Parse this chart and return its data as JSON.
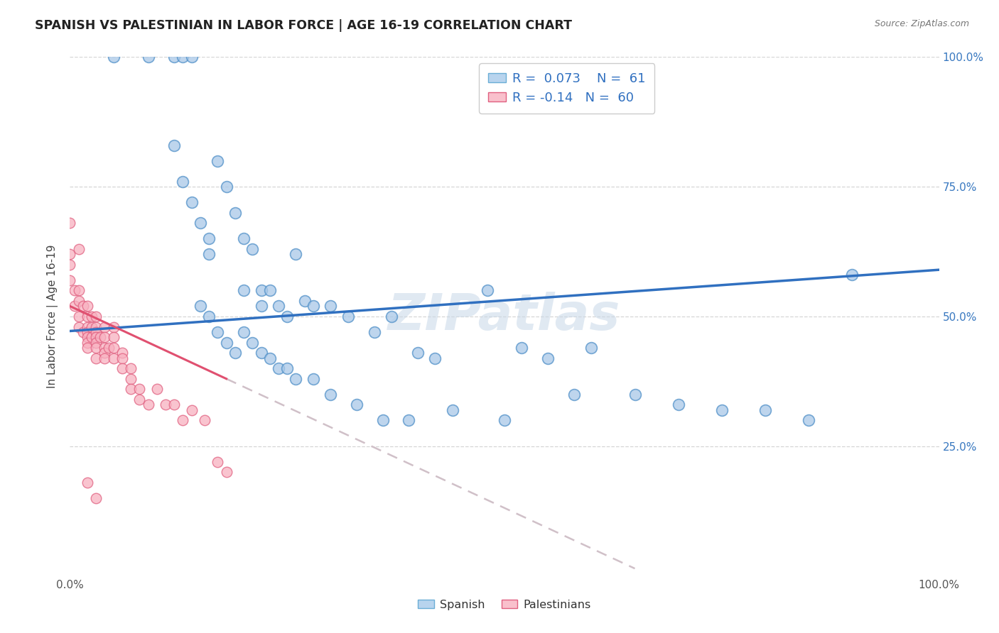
{
  "title": "SPANISH VS PALESTINIAN IN LABOR FORCE | AGE 16-19 CORRELATION CHART",
  "source": "Source: ZipAtlas.com",
  "ylabel": "In Labor Force | Age 16-19",
  "xlim": [
    0.0,
    1.0
  ],
  "ylim": [
    0.0,
    1.0
  ],
  "legend_spanish_label": "Spanish",
  "legend_palestinian_label": "Palestinians",
  "R_spanish": 0.073,
  "N_spanish": 61,
  "R_palestinian": -0.14,
  "N_palestinian": 60,
  "spanish_color": "#a8c8e8",
  "spanish_edge_color": "#5090c8",
  "palestinian_color": "#f8b0c0",
  "palestinian_edge_color": "#e06080",
  "spanish_line_color": "#3070c0",
  "palestinian_line_color": "#e05070",
  "palestinian_dash_color": "#d0c0c8",
  "watermark": "ZIPatlas",
  "spanish_x": [
    0.05,
    0.09,
    0.12,
    0.13,
    0.14,
    0.12,
    0.13,
    0.14,
    0.15,
    0.16,
    0.16,
    0.17,
    0.18,
    0.19,
    0.2,
    0.2,
    0.21,
    0.22,
    0.22,
    0.23,
    0.24,
    0.25,
    0.26,
    0.27,
    0.28,
    0.3,
    0.32,
    0.35,
    0.37,
    0.4,
    0.42,
    0.48,
    0.52,
    0.55,
    0.6,
    0.65,
    0.7,
    0.75,
    0.8,
    0.85,
    0.9,
    0.15,
    0.16,
    0.17,
    0.18,
    0.19,
    0.2,
    0.21,
    0.22,
    0.23,
    0.24,
    0.25,
    0.26,
    0.28,
    0.3,
    0.33,
    0.36,
    0.39,
    0.44,
    0.5,
    0.58
  ],
  "spanish_y": [
    1.0,
    1.0,
    1.0,
    1.0,
    1.0,
    0.83,
    0.76,
    0.72,
    0.68,
    0.65,
    0.62,
    0.8,
    0.75,
    0.7,
    0.65,
    0.55,
    0.63,
    0.55,
    0.52,
    0.55,
    0.52,
    0.5,
    0.62,
    0.53,
    0.52,
    0.52,
    0.5,
    0.47,
    0.5,
    0.43,
    0.42,
    0.55,
    0.44,
    0.42,
    0.44,
    0.35,
    0.33,
    0.32,
    0.32,
    0.3,
    0.58,
    0.52,
    0.5,
    0.47,
    0.45,
    0.43,
    0.47,
    0.45,
    0.43,
    0.42,
    0.4,
    0.4,
    0.38,
    0.38,
    0.35,
    0.33,
    0.3,
    0.3,
    0.32,
    0.3,
    0.35
  ],
  "palestinian_x": [
    0.0,
    0.0,
    0.0,
    0.005,
    0.005,
    0.01,
    0.01,
    0.01,
    0.01,
    0.015,
    0.015,
    0.02,
    0.02,
    0.02,
    0.02,
    0.02,
    0.02,
    0.02,
    0.025,
    0.025,
    0.025,
    0.03,
    0.03,
    0.03,
    0.03,
    0.03,
    0.03,
    0.03,
    0.035,
    0.04,
    0.04,
    0.04,
    0.04,
    0.04,
    0.045,
    0.05,
    0.05,
    0.05,
    0.05,
    0.06,
    0.06,
    0.06,
    0.07,
    0.07,
    0.07,
    0.08,
    0.08,
    0.09,
    0.1,
    0.11,
    0.12,
    0.13,
    0.14,
    0.155,
    0.17,
    0.18,
    0.0,
    0.01,
    0.02,
    0.03
  ],
  "palestinian_y": [
    0.62,
    0.6,
    0.57,
    0.55,
    0.52,
    0.55,
    0.53,
    0.5,
    0.48,
    0.52,
    0.47,
    0.52,
    0.5,
    0.48,
    0.47,
    0.46,
    0.45,
    0.44,
    0.5,
    0.48,
    0.46,
    0.5,
    0.48,
    0.47,
    0.46,
    0.45,
    0.44,
    0.42,
    0.46,
    0.48,
    0.46,
    0.44,
    0.43,
    0.42,
    0.44,
    0.48,
    0.46,
    0.44,
    0.42,
    0.43,
    0.42,
    0.4,
    0.4,
    0.38,
    0.36,
    0.36,
    0.34,
    0.33,
    0.36,
    0.33,
    0.33,
    0.3,
    0.32,
    0.3,
    0.22,
    0.2,
    0.68,
    0.63,
    0.18,
    0.15
  ]
}
